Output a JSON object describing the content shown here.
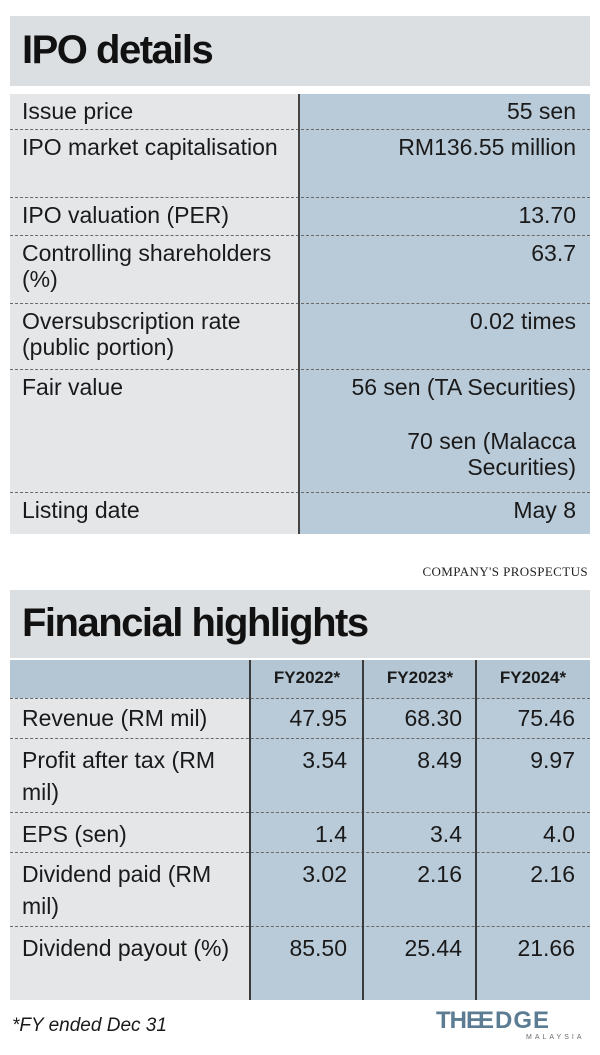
{
  "ipo": {
    "title": "IPO details",
    "rows": [
      {
        "label": "Issue price",
        "value": "55 sen"
      },
      {
        "label": "IPO market capitalisation",
        "value": "RM136.55 million"
      },
      {
        "label": "IPO valuation (PER)",
        "value": "13.70"
      },
      {
        "label": "Controlling shareholders (%)",
        "value": "63.7"
      },
      {
        "label": "Oversubscription rate (public portion)",
        "value": "0.02 times"
      },
      {
        "label": "Fair value",
        "value": "56 sen (TA Securities)",
        "value2": "70 sen (Malacca Securities)"
      },
      {
        "label": "Listing date",
        "value": "May 8"
      }
    ],
    "source": "COMPANY'S PROSPECTUS"
  },
  "financial": {
    "title": "Financial highlights",
    "columns": [
      "FY2022*",
      "FY2023*",
      "FY2024*"
    ],
    "rows": [
      {
        "label": "Revenue (RM mil)",
        "values": [
          "47.95",
          "68.30",
          "75.46"
        ]
      },
      {
        "label": "Profit after tax (RM  mil)",
        "values": [
          "3.54",
          "8.49",
          "9.97"
        ]
      },
      {
        "label": "EPS (sen)",
        "values": [
          "1.4",
          "3.4",
          "4.0"
        ]
      },
      {
        "label": "Dividend paid (RM mil)",
        "values": [
          "3.02",
          "2.16",
          "2.16"
        ]
      },
      {
        "label": "Dividend payout (%)",
        "values": [
          "85.50",
          "25.44",
          "21.66"
        ]
      }
    ],
    "footnote": "*FY ended Dec 31"
  },
  "logo": {
    "the": "THE",
    "edge": "EDGE",
    "sub": "MALAYSIA"
  }
}
